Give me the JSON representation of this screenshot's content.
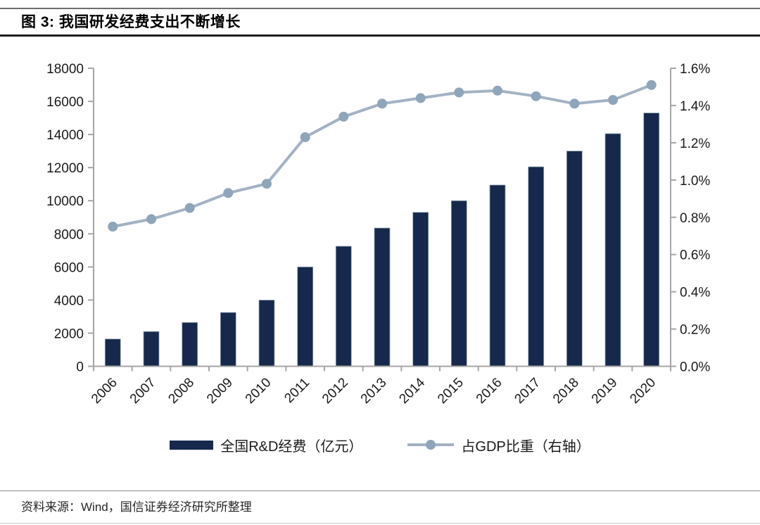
{
  "figure": {
    "title": "图 3: 我国研发经费支出不断增长",
    "source": "资料来源：Wind，国信证券经济研究所整理"
  },
  "legend": [
    {
      "swatch": "bar-swatch",
      "label": "全国R&D经费（亿元）"
    },
    {
      "swatch": "line-swatch",
      "label": "占GDP比重（右轴）"
    }
  ],
  "colors": {
    "bar": "#16294c",
    "bar_edge": "#9aa7b6",
    "line": "#a3b2c4",
    "dot": "#8fa5ba",
    "axis": "#a6a6a6",
    "tick_text": "#1a1a1a"
  },
  "chart_data": {
    "type": "bar",
    "subtype": "bar-line-combo",
    "categories": [
      "2006",
      "2007",
      "2008",
      "2009",
      "2010",
      "2011",
      "2012",
      "2013",
      "2014",
      "2015",
      "2016",
      "2017",
      "2018",
      "2019",
      "2020"
    ],
    "series": [
      {
        "name": "全国R&D经费（亿元）",
        "type": "bar",
        "axis": "left",
        "values": [
          1650,
          2100,
          2650,
          3250,
          4000,
          6000,
          7250,
          8350,
          9300,
          10000,
          10950,
          12050,
          13000,
          14050,
          15300
        ]
      },
      {
        "name": "占GDP比重（右轴）",
        "type": "line",
        "axis": "right",
        "values": [
          0.75,
          0.79,
          0.85,
          0.93,
          0.98,
          1.23,
          1.34,
          1.41,
          1.44,
          1.47,
          1.48,
          1.45,
          1.41,
          1.43,
          1.51
        ]
      }
    ],
    "title": "我国研发经费支出不断增长",
    "xlabel": "",
    "ylabel_left": "亿元",
    "ylabel_right": "%",
    "left_axis": {
      "min": 0,
      "max": 18000,
      "step": 2000
    },
    "right_axis": {
      "min": 0.0,
      "max": 1.6,
      "step": 0.2,
      "suffix": "%",
      "decimals": 1
    },
    "grid": false,
    "legend_position": "bottom"
  }
}
